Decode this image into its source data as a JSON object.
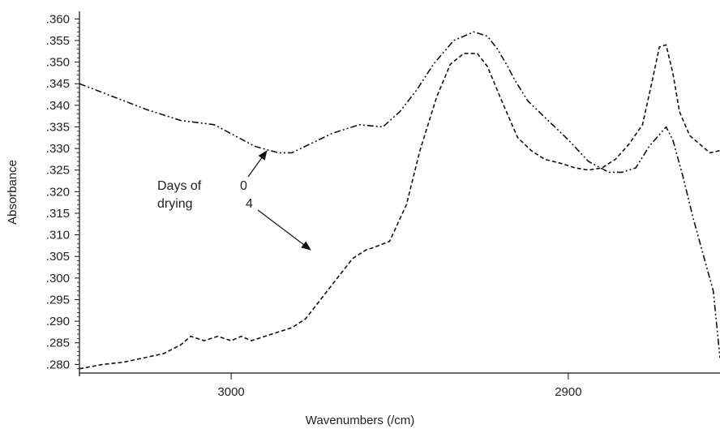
{
  "chart_data": {
    "type": "line",
    "xlabel": "Wavenumbers (/cm)",
    "ylabel": "Absorbance",
    "xlim": [
      3045,
      2855
    ],
    "ylim": [
      0.278,
      0.361
    ],
    "x_reversed": true,
    "x_ticks": [
      3000,
      2900
    ],
    "x_tick_labels": [
      "3000",
      "2900"
    ],
    "y_ticks": [
      0.28,
      0.285,
      0.29,
      0.295,
      0.3,
      0.305,
      0.31,
      0.315,
      0.32,
      0.325,
      0.33,
      0.335,
      0.34,
      0.345,
      0.35,
      0.355,
      0.36
    ],
    "y_tick_labels": [
      ".280",
      ".285",
      ".290",
      ".295",
      ".300",
      ".305",
      ".310",
      ".315",
      ".320",
      ".325",
      ".330",
      ".335",
      ".340",
      ".345",
      ".350",
      ".355",
      ".360"
    ],
    "grid": false,
    "series": [
      {
        "name": "0",
        "style": "dash-dot-dot",
        "color": "#111111",
        "x": [
          3045,
          3035,
          3025,
          3015,
          3005,
          2999,
          2993,
          2986,
          2982,
          2978,
          2970,
          2962,
          2955,
          2950,
          2945,
          2940,
          2934,
          2928,
          2924,
          2921,
          2918,
          2916,
          2912,
          2906,
          2900,
          2894,
          2888,
          2884,
          2880,
          2876,
          2871,
          2869,
          2866,
          2863,
          2860,
          2857,
          2855
        ],
        "values": [
          0.345,
          0.342,
          0.339,
          0.3365,
          0.3355,
          0.333,
          0.3305,
          0.329,
          0.329,
          0.3305,
          0.3335,
          0.3355,
          0.335,
          0.3385,
          0.3435,
          0.3495,
          0.355,
          0.357,
          0.356,
          0.353,
          0.349,
          0.346,
          0.341,
          0.3365,
          0.332,
          0.327,
          0.3245,
          0.3245,
          0.3255,
          0.3305,
          0.335,
          0.332,
          0.3235,
          0.314,
          0.3055,
          0.297,
          0.2815
        ]
      },
      {
        "name": "4",
        "style": "dashed",
        "color": "#111111",
        "x": [
          3045,
          3038,
          3032,
          3026,
          3020,
          3015,
          3012,
          3008,
          3004,
          3000,
          2997,
          2994,
          2990,
          2986,
          2982,
          2978,
          2975,
          2970,
          2964,
          2960,
          2958,
          2953,
          2948,
          2944,
          2939,
          2935,
          2931,
          2927,
          2924,
          2920,
          2915,
          2911,
          2907,
          2902,
          2898,
          2894,
          2890,
          2886,
          2882,
          2878,
          2875,
          2873,
          2871,
          2869,
          2867,
          2864,
          2861,
          2858,
          2855
        ],
        "values": [
          0.279,
          0.28,
          0.2805,
          0.2815,
          0.2825,
          0.2845,
          0.2865,
          0.2855,
          0.2865,
          0.2855,
          0.2865,
          0.2855,
          0.2865,
          0.2875,
          0.2885,
          0.2905,
          0.2935,
          0.2985,
          0.3045,
          0.3065,
          0.307,
          0.3085,
          0.317,
          0.3295,
          0.342,
          0.3495,
          0.352,
          0.352,
          0.349,
          0.3415,
          0.3325,
          0.3295,
          0.3275,
          0.3265,
          0.3255,
          0.325,
          0.3255,
          0.3275,
          0.331,
          0.3355,
          0.346,
          0.3535,
          0.354,
          0.3475,
          0.3385,
          0.333,
          0.331,
          0.329,
          0.3295
        ]
      }
    ],
    "annotations": {
      "label": [
        "Days of",
        "drying"
      ],
      "marker_0": "0",
      "marker_4": "4"
    }
  }
}
